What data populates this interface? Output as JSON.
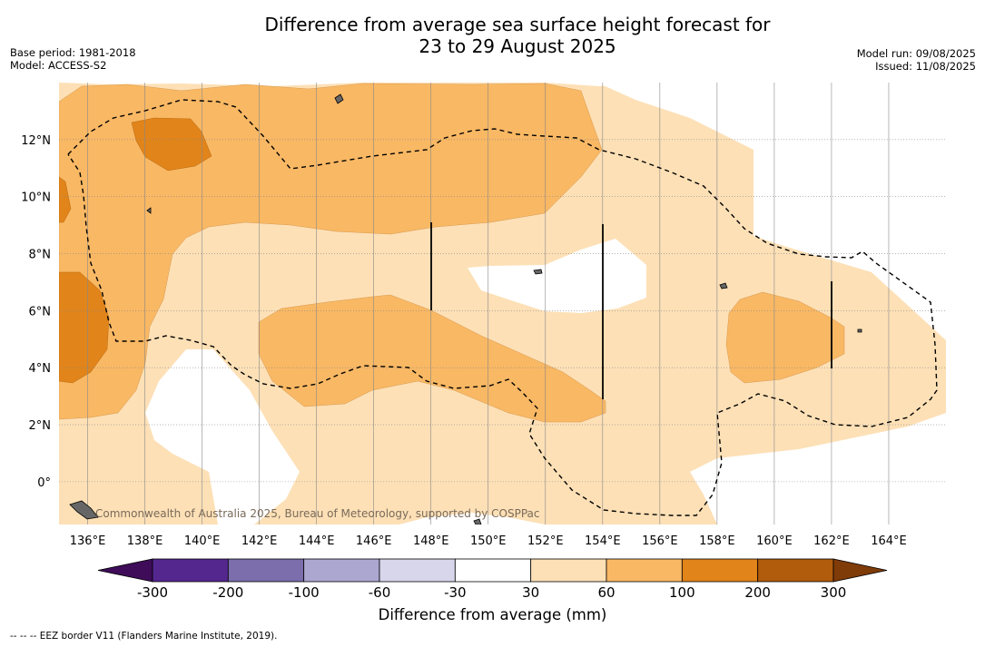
{
  "title": {
    "line1": "Difference from average sea surface height forecast for",
    "line2": "23 to 29 August 2025"
  },
  "meta": {
    "base_period": "Base period: 1981-2018",
    "model": "Model: ACCESS-S2",
    "model_run": "Model run: 09/08/2025",
    "issued": "Issued: 11/08/2025"
  },
  "map": {
    "lon_range": [
      135,
      166
    ],
    "lat_range": [
      -1.5,
      14
    ],
    "lon_ticks": [
      "136°E",
      "138°E",
      "140°E",
      "142°E",
      "144°E",
      "146°E",
      "148°E",
      "150°E",
      "152°E",
      "154°E",
      "156°E",
      "158°E",
      "160°E",
      "162°E",
      "164°E"
    ],
    "lat_ticks": [
      "0°",
      "2°N",
      "4°N",
      "6°N",
      "8°N",
      "10°N",
      "12°N"
    ],
    "credit": "Commonwealth of Australia 2025, Bureau of Meteorology, supported by COSPPac",
    "colors": {
      "band_30_60": "#fde0b6",
      "band_60_100": "#f9b864",
      "band_100_200": "#e1841a",
      "grid": "#888888"
    }
  },
  "colorbar": {
    "title": "Difference from average (mm)",
    "labels": [
      "-300",
      "-200",
      "-100",
      "-60",
      "-30",
      "30",
      "60",
      "100",
      "200",
      "300"
    ],
    "colors": [
      "#3f0c5a",
      "#54278f",
      "#7c6dac",
      "#aca7d1",
      "#d7d6eb",
      "#ffffff",
      "#fde0b6",
      "#f9b864",
      "#e1841a",
      "#b15b0c",
      "#7f3b08"
    ]
  },
  "footnote": "--  --  -- EEZ border V11 (Flanders Marine Institute, 2019)."
}
